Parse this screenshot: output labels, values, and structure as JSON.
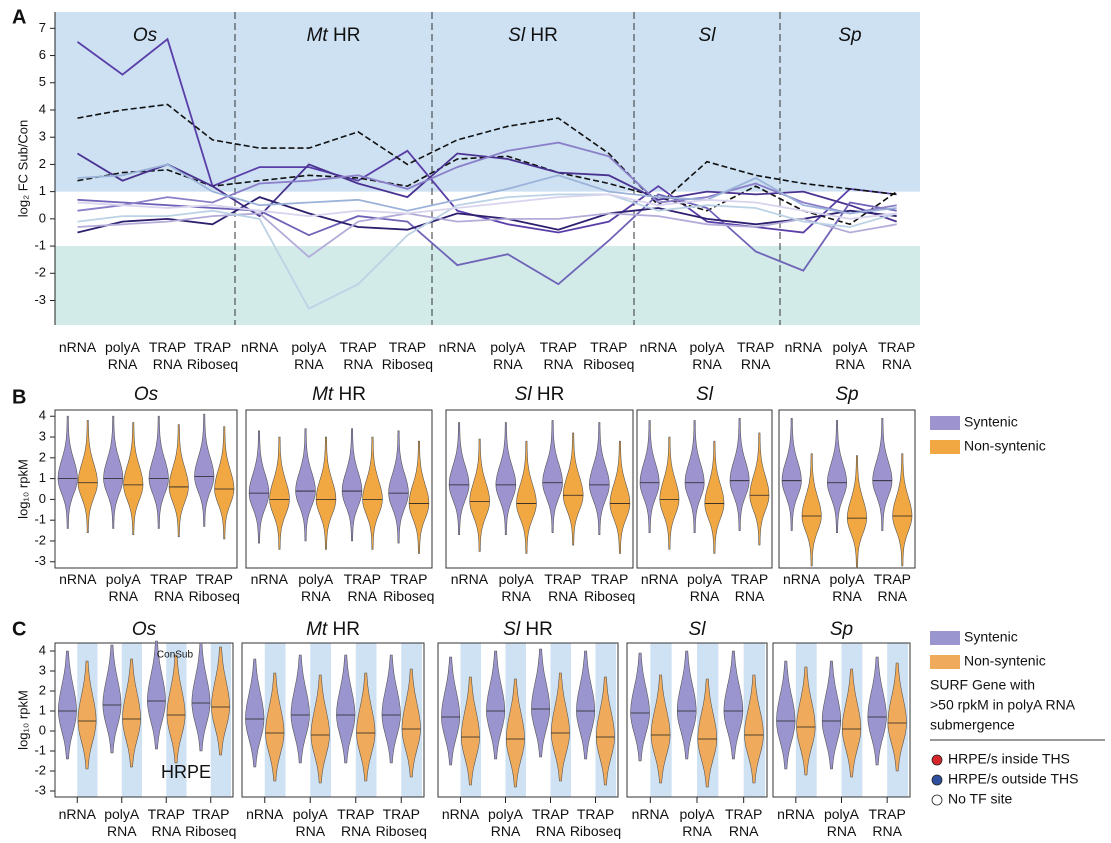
{
  "chart_data": [
    {
      "type": "line",
      "panel": "A",
      "ylabel": "log₂ FC Sub/Con",
      "ylim": [
        -3.9,
        7.6
      ],
      "yticks": [
        7,
        6,
        5,
        4,
        3,
        2,
        1,
        0,
        -1,
        -2,
        -3
      ],
      "bands": [
        {
          "from": 1,
          "color": "#cde1f3"
        },
        {
          "to": -1,
          "color": "#d2ebe8"
        }
      ],
      "groups": [
        {
          "species": "Os",
          "categories": [
            "nRNA",
            "polyA RNA",
            "TRAP RNA",
            "TRAP Riboseq"
          ]
        },
        {
          "species": "Mt",
          "suffix": "HR",
          "categories": [
            "nRNA",
            "polyA RNA",
            "TRAP RNA",
            "TRAP Riboseq"
          ]
        },
        {
          "species": "Sl",
          "suffix": "HR",
          "categories": [
            "nRNA",
            "polyA RNA",
            "TRAP RNA",
            "TRAP Riboseq"
          ]
        },
        {
          "species": "Sl",
          "categories": [
            "nRNA",
            "polyA RNA",
            "TRAP RNA"
          ]
        },
        {
          "species": "Sp",
          "categories": [
            "nRNA",
            "polyA RNA",
            "TRAP RNA"
          ]
        }
      ],
      "series": [
        {
          "color": "#5a3ea8",
          "values": [
            6.5,
            5.3,
            6.6,
            1.2,
            1.9,
            1.9,
            1.4,
            2.5,
            0.3,
            -0.2,
            -0.5,
            -0.1,
            1.2,
            -0.1,
            -0.3,
            -0.5,
            1.1,
            0.9
          ]
        },
        {
          "color": "#111111",
          "dashed": true,
          "values": [
            3.7,
            4.0,
            4.2,
            2.9,
            2.6,
            2.6,
            3.2,
            2.0,
            2.9,
            3.4,
            3.7,
            2.4,
            0.5,
            2.1,
            1.6,
            1.3,
            1.1,
            0.9
          ]
        },
        {
          "color": "#111111",
          "dashed": true,
          "values": [
            1.4,
            1.7,
            1.8,
            1.2,
            1.4,
            1.6,
            1.5,
            1.2,
            2.2,
            2.3,
            1.7,
            1.3,
            0.8,
            0.3,
            1.2,
            0.3,
            -0.2,
            1.0
          ]
        },
        {
          "color": "#4a3290",
          "values": [
            2.4,
            1.4,
            2.0,
            1.2,
            0.1,
            2.0,
            1.3,
            0.8,
            2.4,
            2.2,
            1.7,
            1.6,
            0.7,
            1.0,
            0.9,
            1.0,
            0.5,
            -0.1
          ]
        },
        {
          "color": "#6f63b8",
          "values": [
            0.7,
            0.6,
            0.5,
            0.4,
            0.3,
            -0.6,
            0.1,
            -0.1,
            -1.7,
            -1.3,
            -2.4,
            -0.8,
            0.9,
            0.4,
            -1.2,
            -1.9,
            0.6,
            0.3
          ]
        },
        {
          "color": "#8a7fc8",
          "values": [
            0.3,
            0.5,
            0.8,
            0.6,
            1.3,
            1.4,
            1.6,
            1.1,
            1.9,
            2.5,
            2.8,
            2.3,
            0.6,
            0.8,
            1.3,
            0.6,
            0.2,
            0.5
          ]
        },
        {
          "color": "#2d1f6e",
          "values": [
            -0.5,
            -0.1,
            0.0,
            -0.2,
            0.8,
            0.2,
            -0.3,
            -0.4,
            0.2,
            0.0,
            -0.4,
            0.2,
            0.4,
            0.0,
            -0.2,
            0.0,
            0.3,
            0.1
          ]
        },
        {
          "color": "#b3acd9",
          "values": [
            -0.3,
            -0.2,
            -0.1,
            0.1,
            0.2,
            -1.4,
            -0.1,
            0.2,
            -0.1,
            0.0,
            0.0,
            0.2,
            0.1,
            -0.2,
            -0.3,
            0.0,
            -0.5,
            -0.2
          ]
        },
        {
          "color": "#bcd3e6",
          "values": [
            -0.1,
            0.1,
            0.1,
            0.3,
            0.0,
            -3.3,
            -2.4,
            -0.6,
            0.5,
            0.8,
            0.9,
            0.9,
            0.3,
            0.5,
            0.4,
            -0.1,
            -0.3,
            0.2
          ]
        },
        {
          "color": "#9cb3d9",
          "values": [
            1.5,
            1.6,
            2.0,
            1.0,
            0.5,
            0.6,
            0.7,
            0.3,
            0.7,
            1.1,
            1.6,
            1.0,
            0.8,
            0.7,
            1.5,
            0.5,
            0.2,
            0.4
          ]
        },
        {
          "color": "#d9d4ee",
          "values": [
            0.6,
            0.5,
            0.4,
            0.5,
            0.3,
            0.1,
            0.3,
            0.2,
            0.4,
            0.6,
            0.8,
            0.9,
            0.5,
            0.7,
            0.6,
            0.3,
            0.0,
            0.2
          ]
        }
      ]
    },
    {
      "type": "violin",
      "panel": "B",
      "ylabel": "log₁₀ rpkM",
      "ylim": [
        -3.3,
        4.3
      ],
      "yticks": [
        4,
        3,
        2,
        1,
        0,
        -1,
        -2,
        -3
      ],
      "groups": [
        {
          "species": "Os",
          "categories": [
            "nRNA",
            "polyA RNA",
            "TRAP RNA",
            "TRAP Riboseq"
          ]
        },
        {
          "species": "Mt",
          "suffix": "HR",
          "categories": [
            "nRNA",
            "polyA RNA",
            "TRAP RNA",
            "TRAP Riboseq"
          ]
        },
        {
          "species": "Sl",
          "suffix": "HR",
          "categories": [
            "nRNA",
            "polyA RNA",
            "TRAP RNA",
            "TRAP Riboseq"
          ]
        },
        {
          "species": "Sl",
          "categories": [
            "nRNA",
            "polyA RNA",
            "TRAP RNA"
          ]
        },
        {
          "species": "Sp",
          "categories": [
            "nRNA",
            "polyA RNA",
            "TRAP RNA"
          ]
        }
      ],
      "series": [
        {
          "name": "Syntenic",
          "color": "#9d93cf",
          "values": [
            1.0,
            1.0,
            1.0,
            1.1,
            0.3,
            0.4,
            0.4,
            0.3,
            0.7,
            0.7,
            0.8,
            0.7,
            0.8,
            0.8,
            0.9,
            0.9,
            0.8,
            0.9
          ]
        },
        {
          "name": "Non-syntenic",
          "color": "#f2a842",
          "values": [
            0.8,
            0.7,
            0.6,
            0.5,
            0.0,
            0.0,
            0.0,
            -0.2,
            -0.1,
            -0.2,
            0.2,
            -0.2,
            0.0,
            -0.2,
            0.2,
            -0.8,
            -0.9,
            -0.8
          ]
        }
      ]
    },
    {
      "type": "violin",
      "panel": "C",
      "ylabel": "log₁₀ rpkM",
      "ylim": [
        -3.3,
        4.4
      ],
      "yticks": [
        4,
        3,
        2,
        1,
        0,
        -1,
        -2,
        -3
      ],
      "groups": [
        {
          "species": "Os",
          "categories": [
            "nRNA",
            "polyA RNA",
            "TRAP RNA",
            "TRAP Riboseq"
          ]
        },
        {
          "species": "Mt",
          "suffix": "HR",
          "categories": [
            "nRNA",
            "polyA RNA",
            "TRAP RNA",
            "TRAP Riboseq"
          ]
        },
        {
          "species": "Sl",
          "suffix": "HR",
          "categories": [
            "nRNA",
            "polyA RNA",
            "TRAP RNA",
            "TRAP Riboseq"
          ]
        },
        {
          "species": "Sl",
          "categories": [
            "nRNA",
            "polyA RNA",
            "TRAP RNA"
          ]
        },
        {
          "species": "Sp",
          "categories": [
            "nRNA",
            "polyA RNA",
            "TRAP RNA"
          ]
        }
      ],
      "series": [
        {
          "name": "Syntenic",
          "color": "#9b95cf",
          "values": [
            1.0,
            1.3,
            1.5,
            1.4,
            0.6,
            0.8,
            0.8,
            0.8,
            0.7,
            1.0,
            1.1,
            1.0,
            0.9,
            1.0,
            1.0,
            0.5,
            0.5,
            0.7
          ]
        },
        {
          "name": "Non-syntenic",
          "color": "#f0aa5c",
          "values": [
            0.5,
            0.6,
            0.8,
            1.2,
            -0.1,
            -0.2,
            -0.1,
            0.1,
            -0.3,
            -0.4,
            -0.1,
            -0.3,
            -0.2,
            -0.4,
            -0.2,
            0.2,
            0.1,
            0.4
          ]
        }
      ],
      "annotations": [
        "ConSub",
        "HRPE"
      ],
      "legend_title": [
        "SURF Gene with",
        ">50 rpkM in polyA RNA",
        "submergence"
      ],
      "markers": [
        {
          "label": "HRPE/s inside THS",
          "color": "#d7262b"
        },
        {
          "label": "HRPE/s outside THS",
          "color": "#2f4f9f"
        },
        {
          "label": "No TF site",
          "color": "#ffffff"
        }
      ]
    }
  ]
}
